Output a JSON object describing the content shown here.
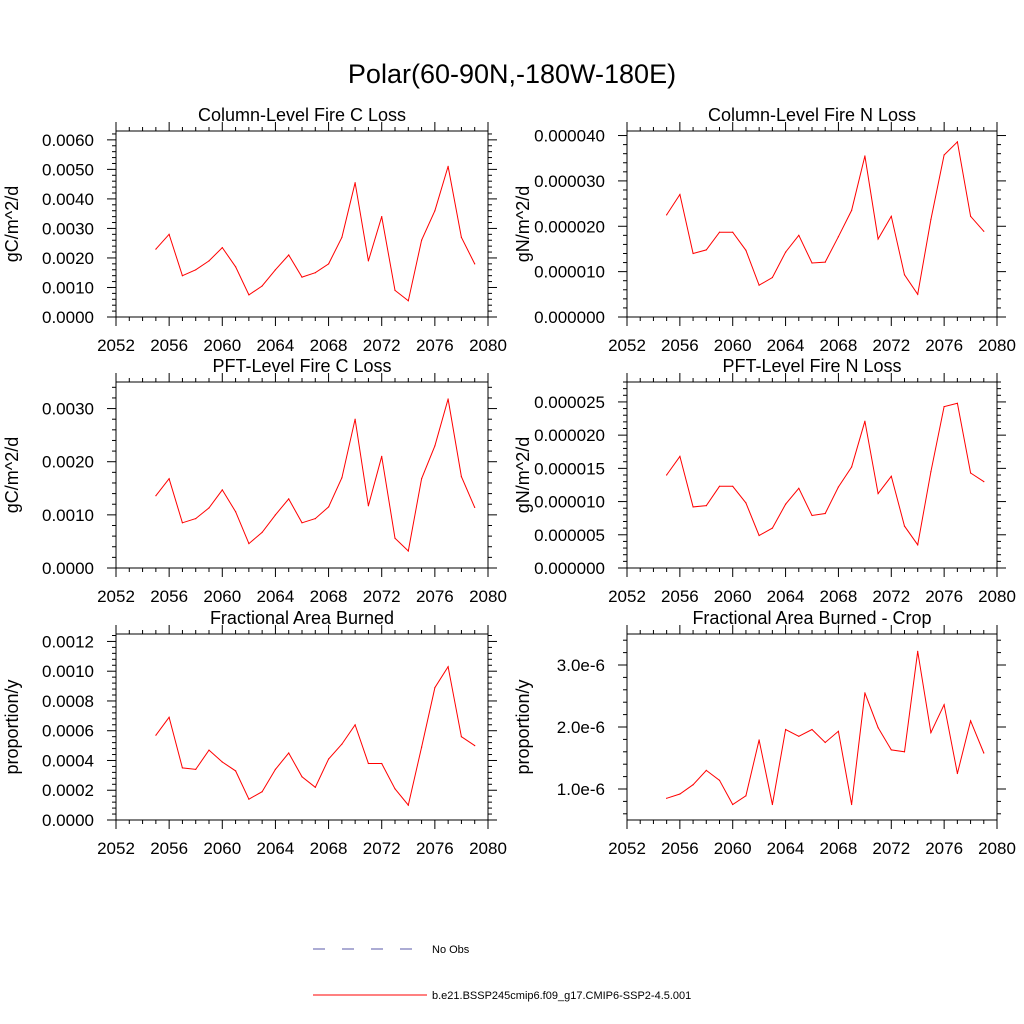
{
  "figure": {
    "title": "Polar(60-90N,-180W-180E)"
  },
  "legend": {
    "entries": [
      {
        "label": "No Obs",
        "color": "#5a5aa8",
        "dash": "dashed"
      },
      {
        "label": "b.e21.BSSP245cmip6.f09_g17.CMIP6-SSP2-4.5.001",
        "color": "#ff0000",
        "dash": "solid"
      }
    ]
  },
  "chart_data": [
    {
      "type": "line",
      "title": "Column-Level Fire C Loss",
      "xlabel": "",
      "ylabel": "gC/m^2/d",
      "xlim": [
        2052,
        2080
      ],
      "ylim": [
        0,
        0.0063
      ],
      "xticks": [
        2052,
        2056,
        2060,
        2064,
        2068,
        2072,
        2076,
        2080
      ],
      "yticks": [
        0,
        0.001,
        0.002,
        0.003,
        0.004,
        0.005,
        0.006
      ],
      "ytick_labels": [
        "0.0000",
        "0.0010",
        "0.0020",
        "0.0030",
        "0.0040",
        "0.0050",
        "0.0060"
      ],
      "color": "#ff0000",
      "series": [
        {
          "x": [
            2055,
            2056,
            2057,
            2058,
            2059,
            2060,
            2061,
            2062,
            2063,
            2064,
            2065,
            2066,
            2067,
            2068,
            2069,
            2070,
            2071,
            2072,
            2073,
            2074,
            2075,
            2076,
            2077,
            2078,
            2079
          ],
          "values": [
            0.0023,
            0.0028,
            0.0014,
            0.0016,
            0.0019,
            0.00235,
            0.0017,
            0.00075,
            0.00105,
            0.0016,
            0.0021,
            0.00135,
            0.0015,
            0.0018,
            0.0027,
            0.00455,
            0.0019,
            0.0034,
            0.0009,
            0.00055,
            0.0026,
            0.0036,
            0.0051,
            0.0027,
            0.0018
          ]
        }
      ]
    },
    {
      "type": "line",
      "title": "Column-Level Fire N Loss",
      "xlabel": "",
      "ylabel": "gN/m^2/d",
      "xlim": [
        2052,
        2080
      ],
      "ylim": [
        0,
        4.1e-05
      ],
      "xticks": [
        2052,
        2056,
        2060,
        2064,
        2068,
        2072,
        2076,
        2080
      ],
      "yticks": [
        0,
        1e-05,
        2e-05,
        3e-05,
        4e-05
      ],
      "ytick_labels": [
        "0.000000",
        "0.000010",
        "0.000020",
        "0.000030",
        "0.000040"
      ],
      "color": "#ff0000",
      "series": [
        {
          "x": [
            2055,
            2056,
            2057,
            2058,
            2059,
            2060,
            2061,
            2062,
            2063,
            2064,
            2065,
            2066,
            2067,
            2068,
            2069,
            2070,
            2071,
            2072,
            2073,
            2074,
            2075,
            2076,
            2077,
            2078,
            2079
          ],
          "values": [
            2.25e-05,
            2.7e-05,
            1.4e-05,
            1.48e-05,
            1.87e-05,
            1.87e-05,
            1.47e-05,
            7e-06,
            8.7e-06,
            1.43e-05,
            1.8e-05,
            1.19e-05,
            1.21e-05,
            1.77e-05,
            2.35e-05,
            3.55e-05,
            1.72e-05,
            2.22e-05,
            9.3e-06,
            5e-06,
            2.15e-05,
            3.57e-05,
            3.86e-05,
            2.22e-05,
            1.89e-05
          ]
        }
      ]
    },
    {
      "type": "line",
      "title": "PFT-Level Fire C Loss",
      "xlabel": "",
      "ylabel": "gC/m^2/d",
      "xlim": [
        2052,
        2080
      ],
      "ylim": [
        0,
        0.0035
      ],
      "xticks": [
        2052,
        2056,
        2060,
        2064,
        2068,
        2072,
        2076,
        2080
      ],
      "yticks": [
        0,
        0.001,
        0.002,
        0.003
      ],
      "ytick_labels": [
        "0.0000",
        "0.0010",
        "0.0020",
        "0.0030"
      ],
      "color": "#ff0000",
      "series": [
        {
          "x": [
            2055,
            2056,
            2057,
            2058,
            2059,
            2060,
            2061,
            2062,
            2063,
            2064,
            2065,
            2066,
            2067,
            2068,
            2069,
            2070,
            2071,
            2072,
            2073,
            2074,
            2075,
            2076,
            2077,
            2078,
            2079
          ],
          "values": [
            0.00136,
            0.00168,
            0.00085,
            0.00093,
            0.00113,
            0.00147,
            0.00106,
            0.00046,
            0.00067,
            0.001,
            0.0013,
            0.00085,
            0.00093,
            0.00115,
            0.0017,
            0.0028,
            0.00117,
            0.0021,
            0.00056,
            0.00032,
            0.00168,
            0.0023,
            0.00318,
            0.00172,
            0.00114
          ]
        }
      ]
    },
    {
      "type": "line",
      "title": "PFT-Level Fire N Loss",
      "xlabel": "",
      "ylabel": "gN/m^2/d",
      "xlim": [
        2052,
        2080
      ],
      "ylim": [
        0,
        2.8e-05
      ],
      "xticks": [
        2052,
        2056,
        2060,
        2064,
        2068,
        2072,
        2076,
        2080
      ],
      "yticks": [
        0,
        5e-06,
        1e-05,
        1.5e-05,
        2e-05,
        2.5e-05
      ],
      "ytick_labels": [
        "0.000000",
        "0.000005",
        "0.000010",
        "0.000015",
        "0.000020",
        "0.000025"
      ],
      "color": "#ff0000",
      "series": [
        {
          "x": [
            2055,
            2056,
            2057,
            2058,
            2059,
            2060,
            2061,
            2062,
            2063,
            2064,
            2065,
            2066,
            2067,
            2068,
            2069,
            2070,
            2071,
            2072,
            2073,
            2074,
            2075,
            2076,
            2077,
            2078,
            2079
          ],
          "values": [
            1.4e-05,
            1.68e-05,
            9.2e-06,
            9.4e-06,
            1.23e-05,
            1.23e-05,
            9.8e-06,
            4.9e-06,
            6e-06,
            9.6e-06,
            1.2e-05,
            7.9e-06,
            8.2e-06,
            1.22e-05,
            1.52e-05,
            2.21e-05,
            1.12e-05,
            1.38e-05,
            6.3e-06,
            3.5e-06,
            1.45e-05,
            2.43e-05,
            2.48e-05,
            1.43e-05,
            1.3e-05
          ]
        }
      ]
    },
    {
      "type": "line",
      "title": "Fractional Area Burned",
      "xlabel": "",
      "ylabel": "proportion/y",
      "xlim": [
        2052,
        2080
      ],
      "ylim": [
        0,
        0.00125
      ],
      "xticks": [
        2052,
        2056,
        2060,
        2064,
        2068,
        2072,
        2076,
        2080
      ],
      "yticks": [
        0,
        0.0002,
        0.0004,
        0.0006,
        0.0008,
        0.001,
        0.0012
      ],
      "ytick_labels": [
        "0.0000",
        "0.0002",
        "0.0004",
        "0.0006",
        "0.0008",
        "0.0010",
        "0.0012"
      ],
      "color": "#ff0000",
      "series": [
        {
          "x": [
            2055,
            2056,
            2057,
            2058,
            2059,
            2060,
            2061,
            2062,
            2063,
            2064,
            2065,
            2066,
            2067,
            2068,
            2069,
            2070,
            2071,
            2072,
            2073,
            2074,
            2075,
            2076,
            2077,
            2078,
            2079
          ],
          "values": [
            0.00057,
            0.00069,
            0.00035,
            0.00034,
            0.00047,
            0.00039,
            0.00033,
            0.00014,
            0.00019,
            0.00034,
            0.00045,
            0.00029,
            0.00022,
            0.00041,
            0.00051,
            0.00064,
            0.00038,
            0.00038,
            0.00021,
            0.0001,
            0.00049,
            0.00089,
            0.00103,
            0.00056,
            0.0005
          ]
        }
      ]
    },
    {
      "type": "line",
      "title": "Fractional Area Burned - Crop",
      "xlabel": "",
      "ylabel": "proportion/y",
      "xlim": [
        2052,
        2080
      ],
      "ylim": [
        5e-07,
        3.5e-06
      ],
      "xticks": [
        2052,
        2056,
        2060,
        2064,
        2068,
        2072,
        2076,
        2080
      ],
      "yticks": [
        1e-06,
        2e-06,
        3e-06
      ],
      "ytick_labels": [
        "1.0e-6",
        "2.0e-6",
        "3.0e-6"
      ],
      "color": "#ff0000",
      "series": [
        {
          "x": [
            2055,
            2056,
            2057,
            2058,
            2059,
            2060,
            2061,
            2062,
            2063,
            2064,
            2065,
            2066,
            2067,
            2068,
            2069,
            2070,
            2071,
            2072,
            2073,
            2074,
            2075,
            2076,
            2077,
            2078,
            2079
          ],
          "values": [
            8.5e-07,
            9.2e-07,
            1.07e-06,
            1.3e-06,
            1.14e-06,
            7.5e-07,
            8.9e-07,
            1.79e-06,
            7.5e-07,
            1.96e-06,
            1.85e-06,
            1.96e-06,
            1.75e-06,
            1.93e-06,
            7.5e-07,
            2.55e-06,
            1.99e-06,
            1.63e-06,
            1.6e-06,
            3.22e-06,
            1.91e-06,
            2.36e-06,
            1.25e-06,
            2.1e-06,
            1.58e-06
          ]
        }
      ]
    }
  ]
}
